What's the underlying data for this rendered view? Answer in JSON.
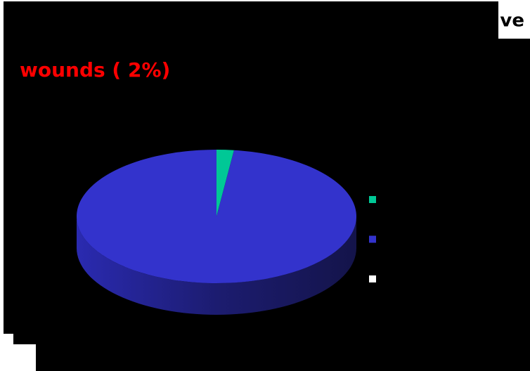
{
  "chart_data": {
    "type": "pie",
    "title": "ve",
    "annotation": "wounds ( 2%)",
    "categories": [
      null,
      null,
      null
    ],
    "values": [
      2,
      98,
      0
    ],
    "colors": [
      "#00c896",
      "#3333cc",
      "#ffffff"
    ],
    "legend": "right"
  }
}
